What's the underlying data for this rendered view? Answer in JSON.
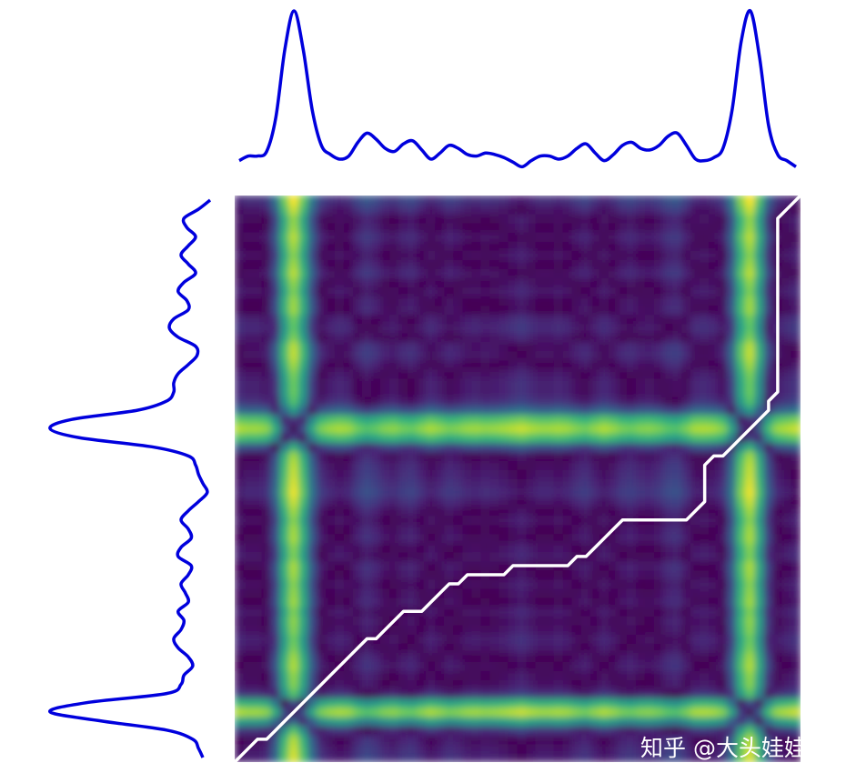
{
  "chart_data": {
    "type": "dtw",
    "x_signal": {
      "color": "#0000dd",
      "values": [
        0.02,
        0.05,
        0.05,
        0.08,
        0.3,
        0.75,
        1.0,
        0.75,
        0.35,
        0.12,
        0.06,
        0.03,
        0.05,
        0.14,
        0.2,
        0.16,
        0.1,
        0.08,
        0.13,
        0.15,
        0.09,
        0.03,
        0.07,
        0.12,
        0.1,
        0.06,
        0.05,
        0.07,
        0.06,
        0.04,
        0.01,
        -0.02,
        0.02,
        0.05,
        0.05,
        0.03,
        0.05,
        0.1,
        0.13,
        0.07,
        0.02,
        0.06,
        0.12,
        0.14,
        0.1,
        0.09,
        0.12,
        0.18,
        0.2,
        0.12,
        0.03,
        0.02,
        0.04,
        0.1,
        0.35,
        0.8,
        1.0,
        0.7,
        0.25,
        0.06,
        0.02,
        -0.02
      ]
    },
    "y_signal": {
      "color": "#0000dd",
      "values": [
        -0.05,
        -0.02,
        0.02,
        0.2,
        0.65,
        1.0,
        0.75,
        0.2,
        0.1,
        0.08,
        0.02,
        0.05,
        0.12,
        0.15,
        0.1,
        0.08,
        0.12,
        0.05,
        0.07,
        0.1,
        0.05,
        0.03,
        0.12,
        0.1,
        0.03,
        0.05,
        0.1,
        0.05,
        -0.02,
        -0.08,
        -0.05,
        -0.02,
        0.0,
        0.05,
        0.3,
        0.8,
        1.0,
        0.85,
        0.4,
        0.2,
        0.15,
        0.15,
        0.12,
        0.05,
        -0.01,
        0.0,
        0.12,
        0.18,
        0.15,
        0.05,
        0.06,
        0.12,
        0.08,
        0.0,
        0.05,
        0.1,
        0.05,
        0.0,
        0.06,
        0.08,
        -0.02,
        -0.1
      ]
    },
    "colormap": "viridis",
    "path_color": "#ffffff",
    "watermark": "知乎 @大头娃娃"
  }
}
